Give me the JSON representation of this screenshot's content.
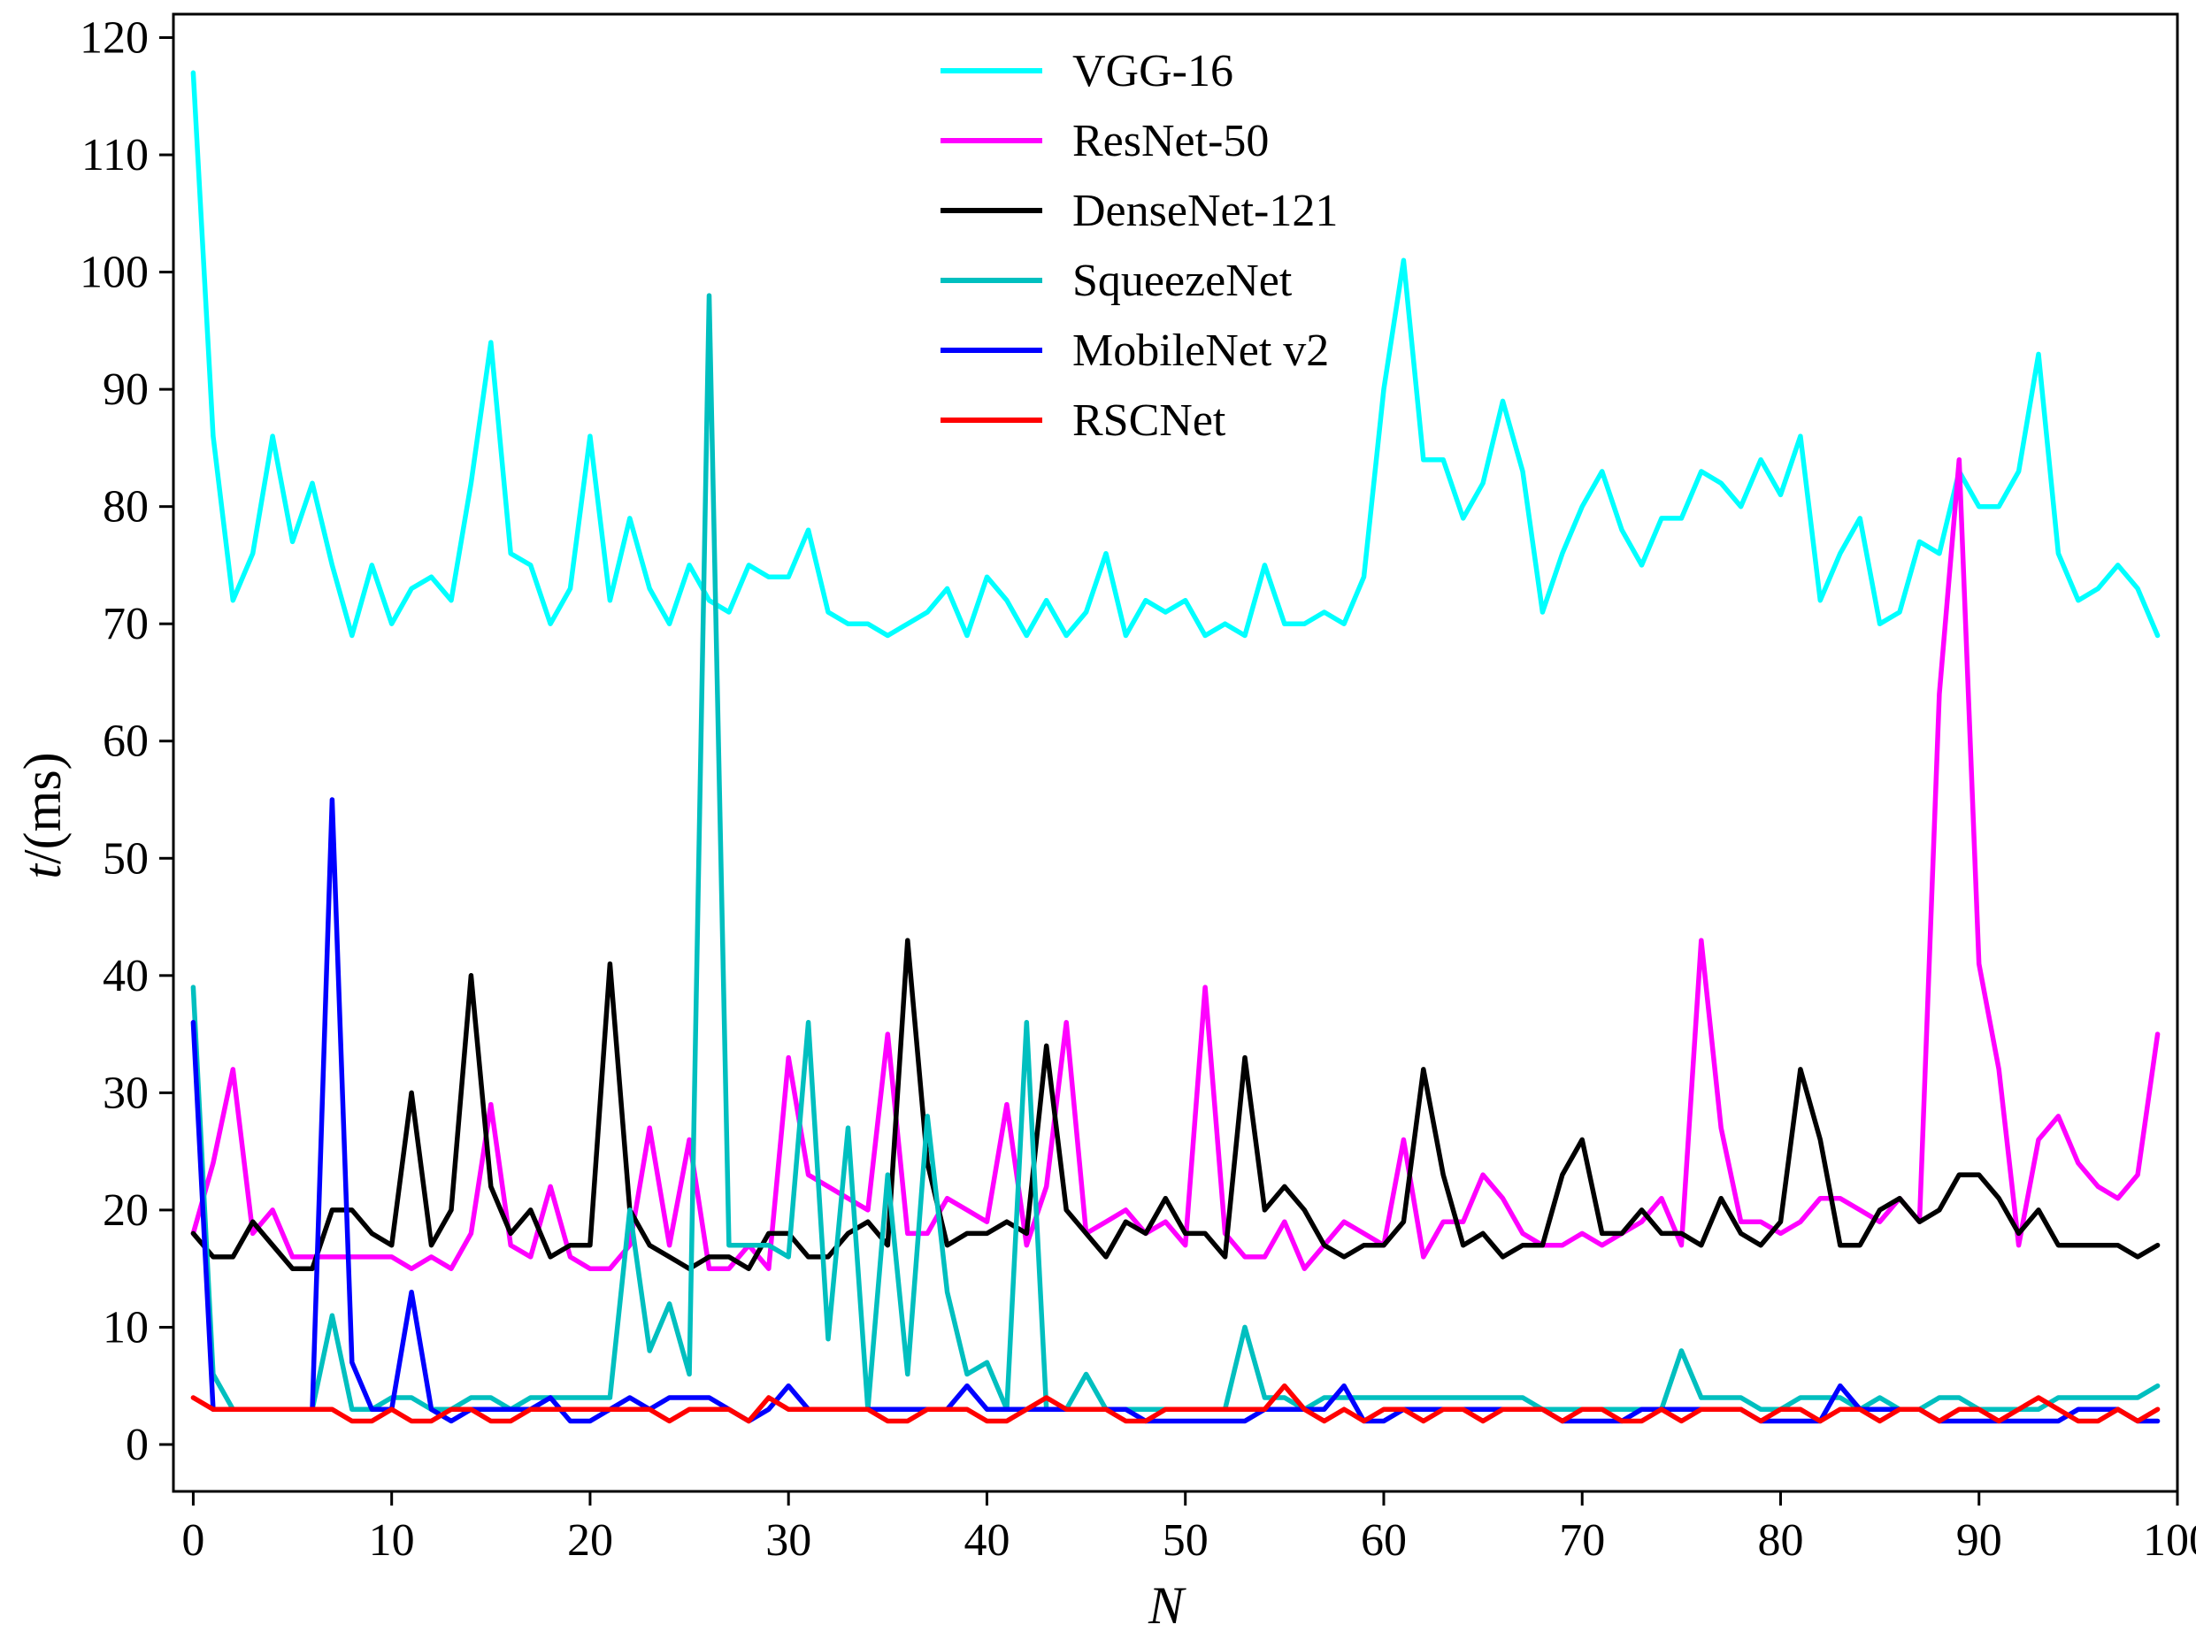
{
  "chart_data": {
    "type": "line",
    "title": "",
    "xlabel": "N",
    "ylabel_var": "t",
    "ylabel_unit": "/(ms)",
    "xlim": [
      -1,
      100
    ],
    "ylim": [
      -4,
      122
    ],
    "x_ticks": [
      0,
      10,
      20,
      30,
      40,
      50,
      60,
      70,
      80,
      90,
      100
    ],
    "x_tick_labels": [
      "0",
      "10",
      "20",
      "30",
      "40",
      "50",
      "60",
      "70",
      "80",
      "90",
      "100"
    ],
    "y_ticks": [
      0,
      10,
      20,
      30,
      40,
      50,
      60,
      70,
      80,
      90,
      100,
      110,
      120
    ],
    "y_tick_labels": [
      "0",
      "10",
      "20",
      "30",
      "40",
      "50",
      "60",
      "70",
      "80",
      "90",
      "100",
      "110",
      "120"
    ],
    "grid": false,
    "legend_position": "top-center",
    "x": [
      0,
      1,
      2,
      3,
      4,
      5,
      6,
      7,
      8,
      9,
      10,
      11,
      12,
      13,
      14,
      15,
      16,
      17,
      18,
      19,
      20,
      21,
      22,
      23,
      24,
      25,
      26,
      27,
      28,
      29,
      30,
      31,
      32,
      33,
      34,
      35,
      36,
      37,
      38,
      39,
      40,
      41,
      42,
      43,
      44,
      45,
      46,
      47,
      48,
      49,
      50,
      51,
      52,
      53,
      54,
      55,
      56,
      57,
      58,
      59,
      60,
      61,
      62,
      63,
      64,
      65,
      66,
      67,
      68,
      69,
      70,
      71,
      72,
      73,
      74,
      75,
      76,
      77,
      78,
      79,
      80,
      81,
      82,
      83,
      84,
      85,
      86,
      87,
      88,
      89,
      90,
      91,
      92,
      93,
      94,
      95,
      96,
      97,
      98,
      99
    ],
    "series": [
      {
        "name": "VGG-16",
        "color": "#00ffff",
        "values": [
          117,
          86,
          72,
          76,
          86,
          77,
          82,
          75,
          69,
          75,
          70,
          73,
          74,
          72,
          82,
          94,
          76,
          75,
          70,
          73,
          86,
          72,
          79,
          73,
          70,
          75,
          72,
          71,
          75,
          74,
          74,
          78,
          71,
          70,
          70,
          69,
          70,
          71,
          73,
          69,
          74,
          72,
          69,
          72,
          69,
          71,
          76,
          69,
          72,
          71,
          72,
          69,
          70,
          69,
          75,
          70,
          70,
          71,
          70,
          74,
          90,
          101,
          84,
          84,
          79,
          82,
          89,
          83,
          71,
          76,
          80,
          83,
          78,
          75,
          79,
          79,
          83,
          82,
          80,
          84,
          81,
          86,
          72,
          76,
          79,
          70,
          71,
          77,
          76,
          83,
          80,
          80,
          83,
          93,
          76,
          72,
          73,
          75,
          73,
          69
        ]
      },
      {
        "name": "ResNet-50",
        "color": "#ff00ff",
        "values": [
          18,
          24,
          32,
          18,
          20,
          16,
          16,
          16,
          16,
          16,
          16,
          15,
          16,
          15,
          18,
          29,
          17,
          16,
          22,
          16,
          15,
          15,
          17,
          27,
          17,
          26,
          15,
          15,
          17,
          15,
          33,
          23,
          22,
          21,
          20,
          35,
          18,
          18,
          21,
          20,
          19,
          29,
          17,
          22,
          36,
          18,
          19,
          20,
          18,
          19,
          17,
          39,
          18,
          16,
          16,
          19,
          15,
          17,
          19,
          18,
          17,
          26,
          16,
          19,
          19,
          23,
          21,
          18,
          17,
          17,
          18,
          17,
          18,
          19,
          21,
          17,
          43,
          27,
          19,
          19,
          18,
          19,
          21,
          21,
          20,
          19,
          21,
          19,
          64,
          84,
          41,
          32,
          17,
          26,
          28,
          24,
          22,
          21,
          23,
          35
        ]
      },
      {
        "name": "DenseNet-121",
        "color": "#000000",
        "values": [
          18,
          16,
          16,
          19,
          17,
          15,
          15,
          20,
          20,
          18,
          17,
          30,
          17,
          20,
          40,
          22,
          18,
          20,
          16,
          17,
          17,
          41,
          20,
          17,
          16,
          15,
          16,
          16,
          15,
          18,
          18,
          16,
          16,
          18,
          19,
          17,
          43,
          24,
          17,
          18,
          18,
          19,
          18,
          34,
          20,
          18,
          16,
          19,
          18,
          21,
          18,
          18,
          16,
          33,
          20,
          22,
          20,
          17,
          16,
          17,
          17,
          19,
          32,
          23,
          17,
          18,
          16,
          17,
          17,
          23,
          26,
          18,
          18,
          20,
          18,
          18,
          17,
          21,
          18,
          17,
          19,
          32,
          26,
          17,
          17,
          20,
          21,
          19,
          20,
          23,
          23,
          21,
          18,
          20,
          17,
          17,
          17,
          17,
          16,
          17
        ]
      },
      {
        "name": "SqueezeNet",
        "color": "#00bfbf",
        "values": [
          39,
          6,
          3,
          3,
          3,
          3,
          3,
          11,
          3,
          3,
          4,
          4,
          3,
          3,
          4,
          4,
          3,
          4,
          4,
          4,
          4,
          4,
          20,
          8,
          12,
          6,
          98,
          17,
          17,
          17,
          16,
          36,
          9,
          27,
          3,
          23,
          6,
          28,
          13,
          6,
          7,
          3,
          36,
          3,
          3,
          6,
          3,
          3,
          3,
          3,
          3,
          3,
          3,
          10,
          4,
          4,
          3,
          4,
          4,
          4,
          4,
          4,
          4,
          4,
          4,
          4,
          4,
          4,
          3,
          3,
          3,
          3,
          3,
          3,
          3,
          8,
          4,
          4,
          4,
          3,
          3,
          4,
          4,
          4,
          3,
          4,
          3,
          3,
          4,
          4,
          3,
          3,
          3,
          3,
          4,
          4,
          4,
          4,
          4,
          5
        ]
      },
      {
        "name": "MobileNet v2",
        "color": "#0000ff",
        "values": [
          36,
          3,
          3,
          3,
          3,
          3,
          3,
          55,
          7,
          3,
          3,
          13,
          3,
          2,
          3,
          3,
          3,
          3,
          4,
          2,
          2,
          3,
          4,
          3,
          4,
          4,
          4,
          3,
          2,
          3,
          5,
          3,
          3,
          3,
          3,
          3,
          3,
          3,
          3,
          5,
          3,
          3,
          3,
          3,
          3,
          3,
          3,
          3,
          2,
          2,
          2,
          2,
          2,
          2,
          3,
          3,
          3,
          3,
          5,
          2,
          2,
          3,
          3,
          3,
          3,
          3,
          3,
          3,
          3,
          2,
          2,
          2,
          2,
          3,
          3,
          3,
          3,
          3,
          3,
          2,
          2,
          2,
          2,
          5,
          3,
          3,
          3,
          3,
          2,
          2,
          2,
          2,
          2,
          2,
          2,
          3,
          3,
          3,
          2,
          2
        ]
      },
      {
        "name": "RSCNet",
        "color": "#ff0000",
        "values": [
          4,
          3,
          3,
          3,
          3,
          3,
          3,
          3,
          2,
          2,
          3,
          2,
          2,
          3,
          3,
          2,
          2,
          3,
          3,
          3,
          3,
          3,
          3,
          3,
          2,
          3,
          3,
          3,
          2,
          4,
          3,
          3,
          3,
          3,
          3,
          2,
          2,
          3,
          3,
          3,
          2,
          2,
          3,
          4,
          3,
          3,
          3,
          2,
          2,
          3,
          3,
          3,
          3,
          3,
          3,
          5,
          3,
          2,
          3,
          2,
          3,
          3,
          2,
          3,
          3,
          2,
          3,
          3,
          3,
          2,
          3,
          3,
          2,
          2,
          3,
          2,
          3,
          3,
          3,
          2,
          3,
          3,
          2,
          3,
          3,
          2,
          3,
          3,
          2,
          3,
          3,
          2,
          3,
          4,
          3,
          2,
          2,
          3,
          2,
          3
        ]
      }
    ]
  }
}
